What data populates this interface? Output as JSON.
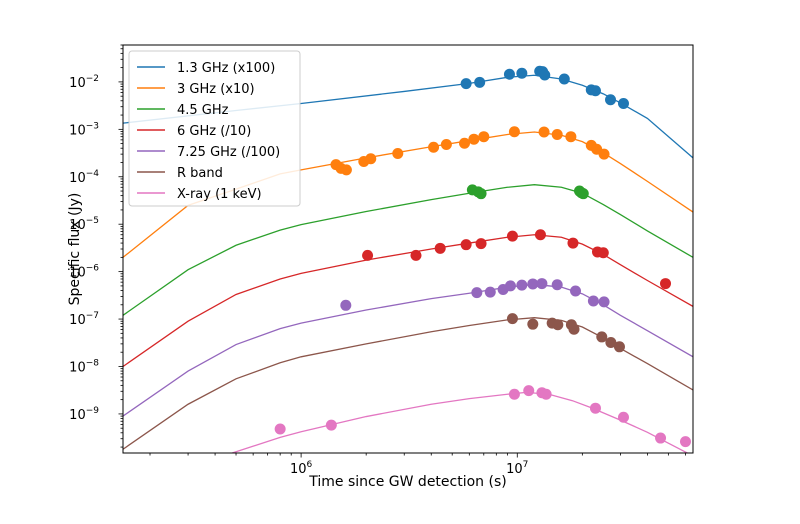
{
  "chart_data": {
    "type": "scatter",
    "xlabel": "Time since GW detection (s)",
    "ylabel": "Specific flux (Jy)",
    "xscale": "log",
    "yscale": "log",
    "xlim": [
      150000,
      65000000
    ],
    "ylim": [
      1.5e-10,
      0.06
    ],
    "x_ticks": [
      {
        "value": 1000000,
        "base": "10",
        "exp": "6"
      },
      {
        "value": 10000000,
        "base": "10",
        "exp": "7"
      }
    ],
    "y_ticks": [
      {
        "value": 1e-09,
        "base": "10",
        "exp": "−9"
      },
      {
        "value": 1e-08,
        "base": "10",
        "exp": "−8"
      },
      {
        "value": 1e-07,
        "base": "10",
        "exp": "−7"
      },
      {
        "value": 1e-06,
        "base": "10",
        "exp": "−6"
      },
      {
        "value": 1e-05,
        "base": "10",
        "exp": "−5"
      },
      {
        "value": 0.0001,
        "base": "10",
        "exp": "−4"
      },
      {
        "value": 0.001,
        "base": "10",
        "exp": "−3"
      },
      {
        "value": 0.01,
        "base": "10",
        "exp": "−2"
      }
    ],
    "grid": false,
    "legend_position": "top-left",
    "series": [
      {
        "name": "1.3 GHz (x100)",
        "color": "#1f77b4",
        "model": [
          [
            150000,
            0.00135
          ],
          [
            500000,
            0.0025
          ],
          [
            1000000,
            0.0035
          ],
          [
            3000000,
            0.0063
          ],
          [
            6000000,
            0.0093
          ],
          [
            9000000,
            0.0125
          ],
          [
            12000000,
            0.0138
          ],
          [
            16000000,
            0.0115
          ],
          [
            20000000,
            0.0085
          ],
          [
            25000000,
            0.0056
          ],
          [
            30000000,
            0.0036
          ],
          [
            40000000,
            0.0017
          ],
          [
            65000000,
            0.00025
          ]
        ],
        "points": [
          [
            5800000,
            0.0092
          ],
          [
            6700000,
            0.0098
          ],
          [
            9200000,
            0.0145
          ],
          [
            10500000,
            0.0152
          ],
          [
            12700000,
            0.0168
          ],
          [
            13100000,
            0.0165
          ],
          [
            13400000,
            0.014
          ],
          [
            16500000,
            0.0115
          ],
          [
            22000000,
            0.0068
          ],
          [
            23000000,
            0.0065
          ],
          [
            27000000,
            0.0042
          ],
          [
            31000000,
            0.0035
          ]
        ]
      },
      {
        "name": "3 GHz (x10)",
        "color": "#ff7f0e",
        "model": [
          [
            150000,
            2e-06
          ],
          [
            300000,
            2.5e-05
          ],
          [
            500000,
            5.5e-05
          ],
          [
            800000,
            0.000115
          ],
          [
            1000000,
            0.00014
          ],
          [
            2000000,
            0.00025
          ],
          [
            4000000,
            0.00043
          ],
          [
            6000000,
            0.00058
          ],
          [
            9000000,
            0.00078
          ],
          [
            12000000,
            0.00088
          ],
          [
            16000000,
            0.00075
          ],
          [
            20000000,
            0.00055
          ],
          [
            25000000,
            0.00032
          ],
          [
            30000000,
            0.00019
          ],
          [
            40000000,
            8e-05
          ],
          [
            65000000,
            1.8e-05
          ]
        ],
        "points": [
          [
            1450000,
            0.00018
          ],
          [
            1530000,
            0.00015
          ],
          [
            1620000,
            0.00014
          ],
          [
            1950000,
            0.00021
          ],
          [
            2100000,
            0.00024
          ],
          [
            2800000,
            0.00031
          ],
          [
            4100000,
            0.00042
          ],
          [
            4700000,
            0.00048
          ],
          [
            5700000,
            0.00051
          ],
          [
            6300000,
            0.00062
          ],
          [
            7000000,
            0.0007
          ],
          [
            9700000,
            0.00089
          ],
          [
            13300000,
            0.00088
          ],
          [
            15300000,
            0.00078
          ],
          [
            17700000,
            0.0007
          ],
          [
            22000000,
            0.00046
          ],
          [
            23300000,
            0.00038
          ],
          [
            25200000,
            0.0003
          ]
        ]
      },
      {
        "name": "4.5 GHz",
        "color": "#2ca02c",
        "model": [
          [
            150000,
            1.2e-07
          ],
          [
            300000,
            1.1e-06
          ],
          [
            500000,
            3.6e-06
          ],
          [
            800000,
            7.5e-06
          ],
          [
            1000000,
            9.8e-06
          ],
          [
            2000000,
            1.85e-05
          ],
          [
            4000000,
            3.3e-05
          ],
          [
            6000000,
            4.5e-05
          ],
          [
            9000000,
            6e-05
          ],
          [
            12000000,
            6.8e-05
          ],
          [
            16000000,
            6e-05
          ],
          [
            20000000,
            4.5e-05
          ],
          [
            25000000,
            2.6e-05
          ],
          [
            30000000,
            1.6e-05
          ],
          [
            40000000,
            7.2e-06
          ],
          [
            65000000,
            2e-06
          ]
        ],
        "points": [
          [
            6200000,
            5.3e-05
          ],
          [
            6600000,
            4.8e-05
          ],
          [
            6800000,
            4.4e-05
          ],
          [
            19400000,
            5e-05
          ],
          [
            19800000,
            4.6e-05
          ],
          [
            20200000,
            4.4e-05
          ]
        ]
      },
      {
        "name": "6 GHz (/10)",
        "color": "#d62728",
        "model": [
          [
            150000,
            1e-08
          ],
          [
            300000,
            9e-08
          ],
          [
            500000,
            3.3e-07
          ],
          [
            800000,
            7e-07
          ],
          [
            1000000,
            9.2e-07
          ],
          [
            2000000,
            1.75e-06
          ],
          [
            4000000,
            3e-06
          ],
          [
            6000000,
            4e-06
          ],
          [
            9000000,
            5.3e-06
          ],
          [
            12000000,
            6e-06
          ],
          [
            16000000,
            5.3e-06
          ],
          [
            20000000,
            3.8e-06
          ],
          [
            25000000,
            2.3e-06
          ],
          [
            30000000,
            1.4e-06
          ],
          [
            40000000,
            6.5e-07
          ],
          [
            65000000,
            1.85e-07
          ]
        ],
        "points": [
          [
            2030000,
            2.2e-06
          ],
          [
            3400000,
            2.2e-06
          ],
          [
            4400000,
            3.1e-06
          ],
          [
            5800000,
            3.7e-06
          ],
          [
            6800000,
            3.9e-06
          ],
          [
            9500000,
            5.6e-06
          ],
          [
            12800000,
            6e-06
          ],
          [
            18100000,
            4e-06
          ],
          [
            23500000,
            2.6e-06
          ],
          [
            25000000,
            2.5e-06
          ],
          [
            48500000,
            5.6e-07
          ]
        ]
      },
      {
        "name": "7.25 GHz (/100)",
        "color": "#9467bd",
        "model": [
          [
            150000,
            9e-10
          ],
          [
            300000,
            8e-09
          ],
          [
            500000,
            2.9e-08
          ],
          [
            800000,
            6.3e-08
          ],
          [
            1000000,
            8.2e-08
          ],
          [
            2000000,
            1.55e-07
          ],
          [
            4000000,
            2.7e-07
          ],
          [
            6000000,
            3.5e-07
          ],
          [
            9000000,
            4.7e-07
          ],
          [
            12000000,
            5.4e-07
          ],
          [
            16000000,
            4.7e-07
          ],
          [
            20000000,
            3.4e-07
          ],
          [
            25000000,
            2e-07
          ],
          [
            30000000,
            1.2e-07
          ],
          [
            40000000,
            5.7e-08
          ],
          [
            65000000,
            1.6e-08
          ]
        ],
        "points": [
          [
            1610000,
            1.95e-07
          ],
          [
            6500000,
            3.6e-07
          ],
          [
            7500000,
            3.7e-07
          ],
          [
            8600000,
            4.2e-07
          ],
          [
            9300000,
            5e-07
          ],
          [
            10500000,
            5.2e-07
          ],
          [
            11800000,
            5.5e-07
          ],
          [
            13000000,
            5.6e-07
          ],
          [
            15300000,
            5.3e-07
          ],
          [
            18600000,
            3.9e-07
          ],
          [
            22500000,
            2.4e-07
          ],
          [
            25200000,
            2.3e-07
          ]
        ]
      },
      {
        "name": "R band",
        "color": "#8c564b",
        "model": [
          [
            150000,
            1.8e-10
          ],
          [
            300000,
            1.6e-09
          ],
          [
            500000,
            5.5e-09
          ],
          [
            800000,
            1.2e-08
          ],
          [
            1000000,
            1.6e-08
          ],
          [
            2000000,
            3e-08
          ],
          [
            4000000,
            5.4e-08
          ],
          [
            6000000,
            7.3e-08
          ],
          [
            9000000,
            9.6e-08
          ],
          [
            12000000,
            1.07e-07
          ],
          [
            16000000,
            9.4e-08
          ],
          [
            20000000,
            6.8e-08
          ],
          [
            25000000,
            4e-08
          ],
          [
            30000000,
            2.4e-08
          ],
          [
            40000000,
            1.15e-08
          ],
          [
            65000000,
            3.2e-09
          ]
        ],
        "points": [
          [
            9500000,
            1.02e-07
          ],
          [
            11800000,
            7.8e-08
          ],
          [
            14500000,
            8.2e-08
          ],
          [
            15400000,
            7.6e-08
          ],
          [
            17800000,
            7.6e-08
          ],
          [
            18300000,
            6.1e-08
          ],
          [
            24600000,
            4.2e-08
          ],
          [
            27100000,
            3.2e-08
          ],
          [
            29700000,
            2.6e-08
          ]
        ]
      },
      {
        "name": "X-ray (1 keV)",
        "color": "#e377c2",
        "model": [
          [
            480000,
            1.5e-10
          ],
          [
            800000,
            3.2e-10
          ],
          [
            1000000,
            4.2e-10
          ],
          [
            2000000,
            8.8e-10
          ],
          [
            4000000,
            1.6e-09
          ],
          [
            6000000,
            2.1e-09
          ],
          [
            9000000,
            2.6e-09
          ],
          [
            11000000,
            2.85e-09
          ],
          [
            14000000,
            2.6e-09
          ],
          [
            18000000,
            1.9e-09
          ],
          [
            22000000,
            1.35e-09
          ],
          [
            30000000,
            7.4e-10
          ],
          [
            40000000,
            4.1e-10
          ],
          [
            65000000,
            1.3e-10
          ]
        ],
        "points": [
          [
            800000,
            4.8e-10
          ],
          [
            1380000,
            5.8e-10
          ],
          [
            9700000,
            2.6e-09
          ],
          [
            11300000,
            3.1e-09
          ],
          [
            13000000,
            2.8e-09
          ],
          [
            13600000,
            2.6e-09
          ],
          [
            23000000,
            1.32e-09
          ],
          [
            31000000,
            8.5e-10
          ],
          [
            46000000,
            3.1e-10
          ],
          [
            60000000,
            2.6e-10
          ]
        ]
      }
    ]
  }
}
